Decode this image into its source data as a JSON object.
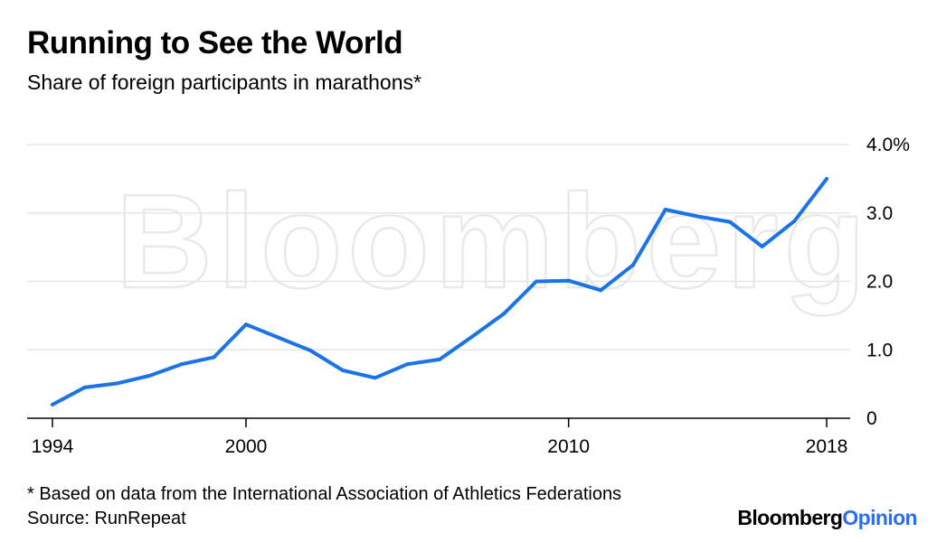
{
  "header": {
    "title": "Running to See the World",
    "subtitle": "Share of foreign participants in marathons*"
  },
  "footer": {
    "footnote": "* Based on data from the International Association of Athletics Federations",
    "source": "Source: RunRepeat",
    "brand_part1": "Bloomberg",
    "brand_part2": "Opinion"
  },
  "watermark": "Bloomberg",
  "colors": {
    "line": "#1a73e8",
    "grid": "#e6e6e6",
    "axis": "#000000",
    "brand_accent": "#2a6df4"
  },
  "chart_data": {
    "type": "line",
    "title": "Running to See the World",
    "subtitle": "Share of foreign participants in marathons*",
    "xlabel": "",
    "ylabel": "",
    "x": [
      1994,
      1995,
      1996,
      1997,
      1998,
      1999,
      2000,
      2001,
      2002,
      2003,
      2004,
      2005,
      2006,
      2007,
      2008,
      2009,
      2010,
      2011,
      2012,
      2013,
      2014,
      2015,
      2016,
      2017,
      2018
    ],
    "series": [
      {
        "values": [
          0.2,
          0.45,
          0.51,
          0.62,
          0.79,
          0.89,
          1.37,
          1.18,
          0.99,
          0.7,
          0.59,
          0.79,
          0.86,
          1.19,
          1.53,
          2.0,
          2.01,
          1.87,
          2.24,
          3.05,
          2.95,
          2.87,
          2.51,
          2.88,
          3.5
        ]
      }
    ],
    "xlim": [
      1994,
      2018
    ],
    "ylim": [
      0,
      4.0
    ],
    "x_ticks": [
      1994,
      2000,
      2010,
      2018
    ],
    "x_tick_labels": [
      "1994",
      "2000",
      "2010",
      "2018"
    ],
    "y_ticks": [
      0,
      1,
      2,
      3,
      4
    ],
    "y_tick_labels": [
      "0",
      "1.0",
      "2.0",
      "3.0",
      "4.0%"
    ],
    "grid": true,
    "y_axis_side": "right",
    "legend": "none"
  }
}
